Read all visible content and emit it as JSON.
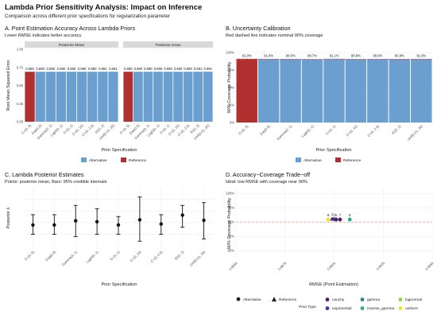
{
  "title": "Lambda Prior Sensitivity Analysis: Impact on Inference",
  "subtitle": "Comparison across different prior specifications for regularization parameter",
  "colors": {
    "alternative": "#6a9fcf",
    "reference": "#b03030",
    "nominal_line": "#e05a5a",
    "cauchy": "#4b1d6e",
    "exponential": "#3b3d8a",
    "gamma": "#2f7f8f",
    "inverse_gamma": "#27ad81",
    "lognormal": "#8fd14f",
    "uniform": "#f3e225"
  },
  "chart_data": [
    {
      "id": "A",
      "type": "bar",
      "title": "A. Point Estimation Accuracy Across Lambda Priors",
      "subtitle": "Lower RMSE indicates better accuracy",
      "xlabel": "Prior Specification",
      "ylabel": "Root Mean Squared Error",
      "ylim": [
        0,
        1.0
      ],
      "yticks": [
        "0.00",
        "0.25",
        "0.50",
        "0.75",
        "1.00"
      ],
      "categories": [
        "C+(0, 5)",
        "Exp(0.5)",
        "Gamma(2, 1)",
        "LogN(0, 1)",
        "C+(0, 1)",
        "C+(0, 10)",
        "C+(0, 2.5)",
        "IG(2, 2)",
        "Unif(0.01, 20)"
      ],
      "facets": [
        {
          "strip": "Posterior Mean",
          "values": [
            0.69,
            0.69,
            0.69,
            0.69,
            0.69,
            0.69,
            0.69,
            0.691,
            0.691
          ],
          "labels": [
            "0.690",
            "0.690",
            "0.690",
            "0.690",
            "0.690",
            "0.690",
            "0.690",
            "0.691",
            "0.691"
          ]
        },
        {
          "strip": "Posterior Draw",
          "values": [
            0.69,
            0.69,
            0.69,
            0.69,
            0.69,
            0.69,
            0.69,
            0.691,
            0.691
          ],
          "labels": [
            "0.690",
            "0.690",
            "0.690",
            "0.690",
            "0.690",
            "0.690",
            "0.690",
            "0.691",
            "0.691"
          ]
        }
      ],
      "reference_index": 0,
      "legend": [
        "Alternative",
        "Reference"
      ]
    },
    {
      "id": "B",
      "type": "bar",
      "title": "B. Uncertainty Calibration",
      "subtitle": "Red dashed line indicates nominal 90% coverage",
      "xlabel": "Prior Specification",
      "ylabel": "90% Coverage Probability",
      "ylim": [
        0,
        1.0
      ],
      "yticks": [
        "0%",
        "25%",
        "50%",
        "75%",
        "100%"
      ],
      "nominal": 0.9,
      "categories": [
        "C+(0, 5)",
        "Exp(0.5)",
        "Gamma(2, 1)",
        "LogN(0, 1)",
        "C+(0, 1)",
        "C+(0, 10)",
        "C+(0, 2.5)",
        "IG(2, 2)",
        "Unif(0.01, 20)"
      ],
      "values": [
        0.91,
        0.91,
        0.909,
        0.907,
        0.911,
        0.908,
        0.909,
        0.909,
        0.91
      ],
      "labels": [
        "91.0%",
        "91.0%",
        "90.9%",
        "90.7%",
        "91.1%",
        "90.8%",
        "90.9%",
        "90.9%",
        "91.0%"
      ],
      "reference_index": 0,
      "legend": [
        "Alternative",
        "Reference"
      ]
    },
    {
      "id": "C",
      "type": "scatter",
      "title": "C. Lambda Posterior Estimates",
      "subtitle": "Points: posterior mean, Bars: 95% credible intervals",
      "xlabel": "Prior Specification",
      "ylabel": "Posterior λ",
      "ylim": [
        -0.3,
        1.0
      ],
      "categories": [
        "C+(0, 5)",
        "Exp(0.5)",
        "Gamma(2, 1)",
        "LogN(0, 1)",
        "C+(0, 1)",
        "C+(0, 10)",
        "C+(0, 2.5)",
        "IG(2, 2)",
        "Unif(0.01, 20)"
      ],
      "means": [
        0.2,
        0.2,
        0.29,
        0.27,
        0.2,
        0.31,
        0.22,
        0.41,
        0.3
      ],
      "lower": [
        0.0,
        0.0,
        -0.05,
        0.0,
        0.0,
        -0.15,
        0.0,
        0.15,
        -0.1
      ],
      "upper": [
        0.42,
        0.42,
        0.62,
        0.55,
        0.38,
        0.8,
        0.42,
        0.62,
        0.68
      ]
    },
    {
      "id": "D",
      "type": "scatter",
      "title": "D. Accuracy−Coverage Trade−off",
      "subtitle": "Ideal: low RMSE with coverage near 90%",
      "xlabel": "RMSE (Point Estimation)",
      "ylabel": "90% Coverage Probability",
      "xlim": [
        0.685,
        0.695
      ],
      "xticks": [
        "0.6850",
        "0.6875",
        "0.6900",
        "0.6925",
        "0.6950"
      ],
      "ylim": [
        0.77,
        1.02
      ],
      "yticks": [
        "80%",
        "85%",
        "90%",
        "95%",
        "100%"
      ],
      "nominal": 0.9,
      "points": [
        {
          "x": 0.6897,
          "y": 0.909,
          "label": "9",
          "type": "uniform",
          "shape": "circle"
        },
        {
          "x": 0.6899,
          "y": 0.911,
          "label": "1",
          "type": "cauchy",
          "shape": "triangle"
        },
        {
          "x": 0.69,
          "y": 0.91,
          "label": "2",
          "type": "exponential",
          "shape": "circle"
        },
        {
          "x": 0.6901,
          "y": 0.909,
          "label": "5",
          "type": "cauchy",
          "shape": "circle"
        },
        {
          "x": 0.6903,
          "y": 0.909,
          "label": "7",
          "type": "cauchy",
          "shape": "circle"
        },
        {
          "x": 0.6908,
          "y": 0.909,
          "label": "8",
          "type": "inverse_gamma",
          "shape": "circle"
        }
      ],
      "legend_shape_title": "",
      "legend_shapes": [
        "Alternative",
        "Reference"
      ],
      "legend_color_title": "Prior Type",
      "legend_colors": [
        "cauchy",
        "exponential",
        "gamma",
        "inverse_gamma",
        "lognormal",
        "uniform"
      ]
    }
  ]
}
